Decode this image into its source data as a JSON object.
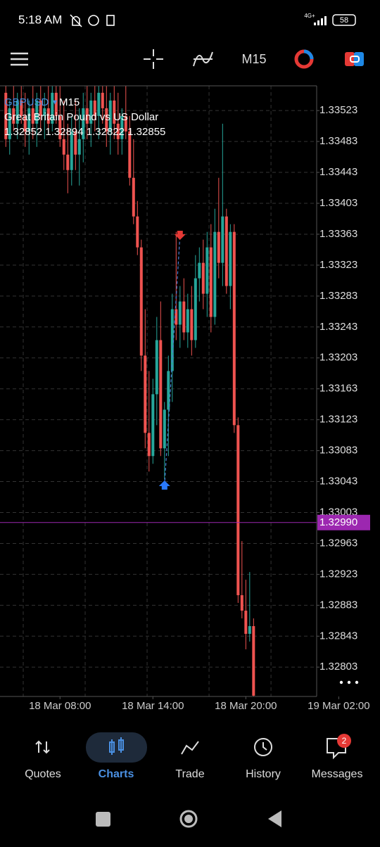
{
  "status_bar": {
    "time": "5:18 AM",
    "network": "4G+",
    "battery": "58"
  },
  "toolbar": {
    "timeframe": "M15"
  },
  "chart_header": {
    "symbol": "GBPUSD",
    "timeframe": "M15",
    "description": "Great Britain Pound vs US Dollar",
    "ohlc": "1.32852 1.32894 1.32822 1.32855"
  },
  "chart_data": {
    "type": "candlestick",
    "up_color": "#26a69a",
    "down_color": "#ef5350",
    "grid": true,
    "x": [
      2,
      3,
      4,
      5,
      6,
      7,
      8,
      9,
      10,
      11,
      12,
      13,
      14,
      15,
      16,
      17,
      18,
      19,
      20,
      21,
      22,
      23,
      24,
      25,
      26,
      27,
      28,
      29,
      30,
      31,
      32,
      33,
      34,
      35,
      36,
      37,
      38,
      39,
      40,
      41,
      42,
      43,
      44,
      45,
      46,
      47,
      48,
      49,
      50,
      51,
      52,
      53,
      54,
      55,
      56,
      57,
      58,
      59,
      60,
      61,
      62,
      63,
      64,
      65,
      66
    ],
    "open": [
      1.33546,
      1.33486,
      1.33526,
      1.33506,
      1.33536,
      1.33516,
      1.33496,
      1.33526,
      1.33506,
      1.33536,
      1.33516,
      1.33526,
      1.33506,
      1.33546,
      1.33516,
      1.33486,
      1.33466,
      1.33446,
      1.33496,
      1.33466,
      1.33486,
      1.33526,
      1.33506,
      1.33536,
      1.33516,
      1.33546,
      1.33526,
      1.33496,
      1.33536,
      1.33506,
      1.33486,
      1.33516,
      1.33496,
      1.33436,
      1.33386,
      1.33346,
      1.33206,
      1.33106,
      1.33076,
      1.33156,
      1.33226,
      1.33086,
      1.33136,
      1.33186,
      1.33266,
      1.33246,
      1.33276,
      1.33236,
      1.33266,
      1.33226,
      1.33306,
      1.33326,
      1.33286,
      1.33346,
      1.33256,
      1.33366,
      1.33326,
      1.33386,
      1.33296,
      1.33366,
      1.33116,
      1.32896,
      1.32876,
      1.32846,
      1.32856
    ],
    "high": [
      1.33556,
      1.33536,
      1.33556,
      1.33546,
      1.33556,
      1.33546,
      1.33536,
      1.33556,
      1.33546,
      1.33556,
      1.33546,
      1.33556,
      1.33556,
      1.33556,
      1.33556,
      1.33536,
      1.33506,
      1.33516,
      1.33536,
      1.33526,
      1.33546,
      1.33556,
      1.33546,
      1.33556,
      1.33556,
      1.33556,
      1.33556,
      1.33546,
      1.33556,
      1.33546,
      1.33526,
      1.33556,
      1.33516,
      1.33486,
      1.33406,
      1.33356,
      1.33266,
      1.33186,
      1.33176,
      1.33256,
      1.33276,
      1.33146,
      1.33206,
      1.33286,
      1.33366,
      1.33296,
      1.33306,
      1.33286,
      1.33296,
      1.33336,
      1.33346,
      1.33356,
      1.33366,
      1.33376,
      1.33396,
      1.33436,
      1.33506,
      1.33396,
      1.33376,
      1.33376,
      1.33126,
      1.32966,
      1.32916,
      1.32926,
      1.32866
    ],
    "low": [
      1.33476,
      1.33466,
      1.33496,
      1.33486,
      1.33506,
      1.33476,
      1.33466,
      1.33486,
      1.33476,
      1.33496,
      1.33486,
      1.33496,
      1.33496,
      1.33506,
      1.33476,
      1.33446,
      1.33416,
      1.33426,
      1.33446,
      1.33426,
      1.33456,
      1.33486,
      1.33476,
      1.33496,
      1.33486,
      1.33506,
      1.33476,
      1.33466,
      1.33486,
      1.33466,
      1.33466,
      1.33486,
      1.33426,
      1.33376,
      1.33336,
      1.33186,
      1.33086,
      1.33056,
      1.33066,
      1.33116,
      1.33076,
      1.33046,
      1.33076,
      1.33146,
      1.33226,
      1.33216,
      1.33226,
      1.33216,
      1.33206,
      1.33216,
      1.33276,
      1.33266,
      1.33256,
      1.33236,
      1.33246,
      1.33306,
      1.33296,
      1.33286,
      1.33266,
      1.33106,
      1.32886,
      1.32866,
      1.32826,
      1.32836,
      1.32756
    ],
    "close": [
      1.33486,
      1.33526,
      1.33506,
      1.33536,
      1.33516,
      1.33496,
      1.33526,
      1.33506,
      1.33536,
      1.33516,
      1.33526,
      1.33506,
      1.33546,
      1.33516,
      1.33486,
      1.33466,
      1.33446,
      1.33496,
      1.33466,
      1.33486,
      1.33526,
      1.33506,
      1.33536,
      1.33516,
      1.33546,
      1.33526,
      1.33496,
      1.33536,
      1.33506,
      1.33486,
      1.33516,
      1.33496,
      1.33436,
      1.33386,
      1.33346,
      1.33206,
      1.33106,
      1.33076,
      1.33156,
      1.33226,
      1.33086,
      1.33136,
      1.33186,
      1.33266,
      1.33246,
      1.33276,
      1.33236,
      1.33266,
      1.33226,
      1.33306,
      1.33326,
      1.33286,
      1.33346,
      1.33256,
      1.33366,
      1.33326,
      1.33386,
      1.33296,
      1.33366,
      1.33116,
      1.32896,
      1.32876,
      1.32846,
      1.32856,
      1.32766
    ],
    "xlim": [
      0.5,
      82.3
    ],
    "xticks": [
      {
        "value": 16,
        "label": "18 Mar 08:00"
      },
      {
        "value": 40,
        "label": "18 Mar 14:00"
      },
      {
        "value": 64,
        "label": "18 Mar 20:00"
      },
      {
        "value": 88,
        "label": "19 Mar 02:00"
      }
    ],
    "xgrid": [
      6.5,
      22.5,
      38.5,
      54.5,
      70.5
    ],
    "ylim": [
      1.32765,
      1.33555
    ],
    "yticks": [
      1.33523,
      1.33483,
      1.33443,
      1.33403,
      1.33363,
      1.33323,
      1.33283,
      1.33243,
      1.33203,
      1.33163,
      1.33123,
      1.33083,
      1.33043,
      1.33003,
      1.32963,
      1.32923,
      1.32883,
      1.32843,
      1.32803
    ],
    "current_price": {
      "value": 1.3299,
      "label": "1.32990"
    },
    "current_price_color": "#9c27b0",
    "trade": {
      "entry": {
        "x": 43,
        "price": 1.33038
      },
      "exit": {
        "x": 47,
        "price": 1.33362
      }
    }
  },
  "tabs": [
    {
      "label": "Quotes"
    },
    {
      "label": "Charts"
    },
    {
      "label": "Trade"
    },
    {
      "label": "History"
    },
    {
      "label": "Messages",
      "badge": "2"
    }
  ]
}
